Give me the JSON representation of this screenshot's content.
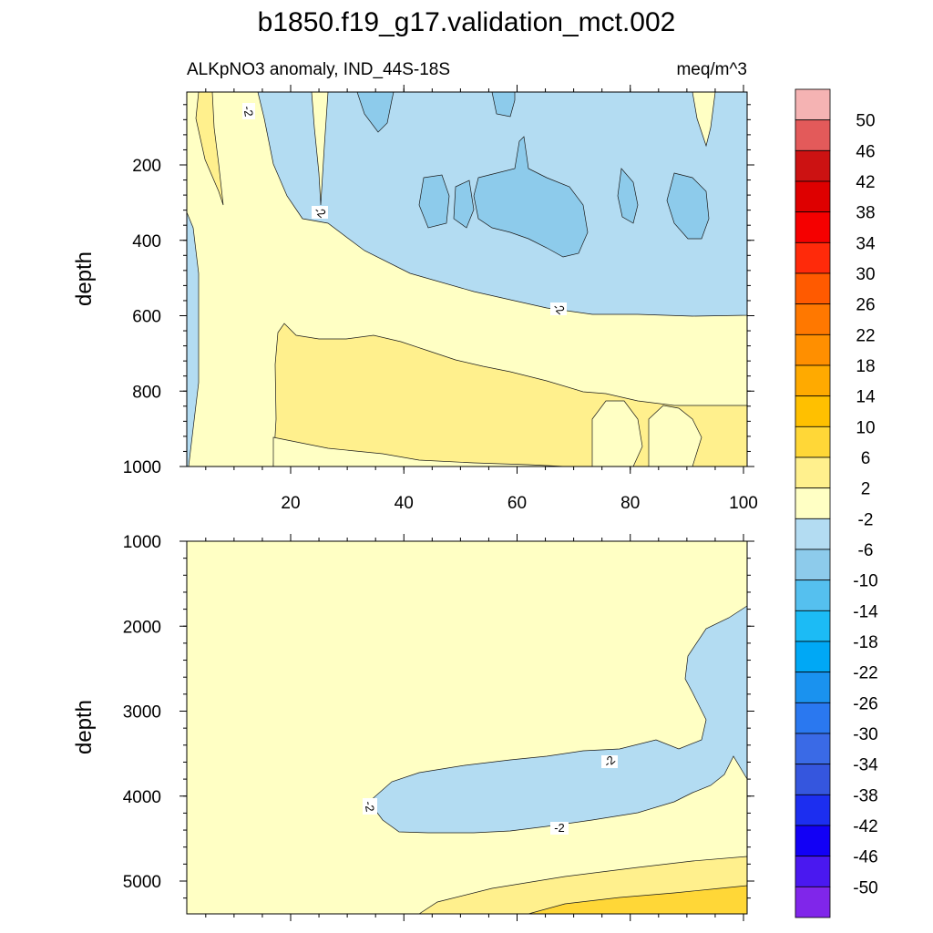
{
  "title": "b1850.f19_g17.validation_mct.002",
  "chart_data": {
    "type": "contour",
    "variable": "ALKpNO3 anomaly, IND_44S-18S",
    "units": "meq/m^3",
    "colorbar": {
      "labels": [
        "50",
        "46",
        "42",
        "38",
        "34",
        "30",
        "26",
        "22",
        "18",
        "14",
        "10",
        "6",
        "2",
        "-2",
        "-6",
        "-10",
        "-14",
        "-18",
        "-22",
        "-26",
        "-30",
        "-34",
        "-38",
        "-42",
        "-46",
        "-50"
      ],
      "colors": [
        "#f5b3b3",
        "#e35a5a",
        "#cc1212",
        "#de0000",
        "#f50000",
        "#ff2a0a",
        "#ff5a00",
        "#ff7800",
        "#ff8f00",
        "#ffaa00",
        "#ffc000",
        "#ffd737",
        "#fff08d",
        "#ffffc4",
        "#b3dcf2",
        "#8dcbeb",
        "#55c0ef",
        "#1cbbf5",
        "#00a8f5",
        "#1a92ef",
        "#2a78f0",
        "#3a6ae6",
        "#3556de",
        "#1c2ef0",
        "#1200f5",
        "#4a18f0",
        "#8026ea"
      ]
    },
    "panels": [
      {
        "name": "upper",
        "x_ticks": [
          "20",
          "40",
          "60",
          "80",
          "100"
        ],
        "y_label": "depth",
        "y_ticks": [
          "200",
          "400",
          "600",
          "800",
          "1000"
        ],
        "contour_labels": [
          "-2",
          "-2",
          "-2"
        ]
      },
      {
        "name": "lower",
        "y_label": "depth",
        "y_ticks": [
          "1000",
          "2000",
          "3000",
          "4000",
          "5000"
        ],
        "contour_labels": [
          "-2",
          "-2",
          "-2"
        ]
      }
    ]
  }
}
